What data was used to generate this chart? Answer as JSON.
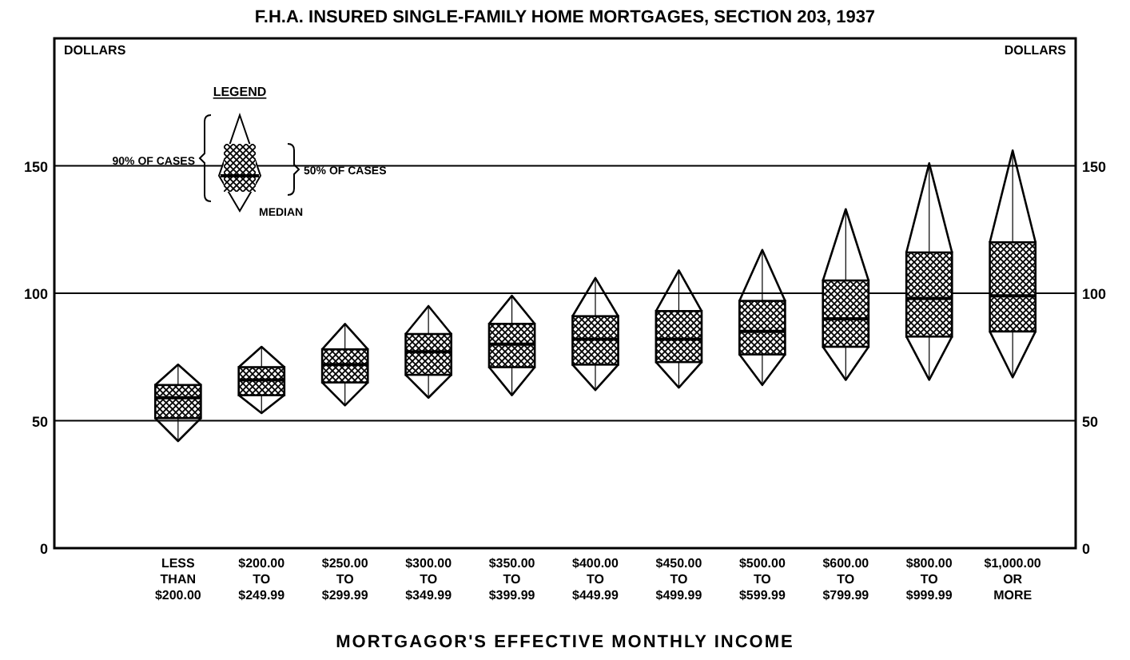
{
  "chart_data": {
    "type": "box",
    "title": "F.H.A. INSURED SINGLE-FAMILY HOME MORTGAGES, SECTION 203, 1937",
    "xlabel": "MORTGAGOR'S EFFECTIVE MONTHLY INCOME",
    "ylabel": "DOLLARS",
    "y2label": "DOLLARS",
    "legend_title": "LEGEND",
    "annotations": [
      "90% OF CASES",
      "MEDIAN",
      "50% OF CASES"
    ],
    "categories": [
      "LESS\nTHAN\n$200.00",
      "$200.00\nTO\n$249.99",
      "$250.00\nTO\n$299.99",
      "$300.00\nTO\n$349.99",
      "$350.00\nTO\n$399.99",
      "$400.00\nTO\n$449.99",
      "$450.00\nTO\n$499.99",
      "$500.00\nTO\n$599.99",
      "$600.00\nTO\n$799.99",
      "$800.00\nTO\n$999.99",
      "$1,000.00\nOR\nMORE"
    ],
    "boxes": [
      {
        "low": 42,
        "q1": 51,
        "median": 59,
        "q3": 64,
        "high": 72
      },
      {
        "low": 53,
        "q1": 60,
        "median": 66,
        "q3": 71,
        "high": 79
      },
      {
        "low": 56,
        "q1": 65,
        "median": 72,
        "q3": 78,
        "high": 88
      },
      {
        "low": 59,
        "q1": 68,
        "median": 77,
        "q3": 84,
        "high": 95
      },
      {
        "low": 60,
        "q1": 71,
        "median": 80,
        "q3": 88,
        "high": 99
      },
      {
        "low": 62,
        "q1": 72,
        "median": 82,
        "q3": 91,
        "high": 106
      },
      {
        "low": 63,
        "q1": 73,
        "median": 82,
        "q3": 93,
        "high": 109
      },
      {
        "low": 64,
        "q1": 76,
        "median": 85,
        "q3": 97,
        "high": 117
      },
      {
        "low": 66,
        "q1": 79,
        "median": 90,
        "q3": 105,
        "high": 133
      },
      {
        "low": 66,
        "q1": 83,
        "median": 98,
        "q3": 116,
        "high": 151
      },
      {
        "low": 67,
        "q1": 85,
        "median": 99,
        "q3": 120,
        "high": 156
      }
    ],
    "ylim": [
      0,
      200
    ],
    "yticks": [
      0,
      50,
      100,
      150
    ],
    "y2lim": [
      0,
      200
    ],
    "y2ticks": [
      0,
      50,
      100,
      150
    ],
    "grid": "y"
  }
}
